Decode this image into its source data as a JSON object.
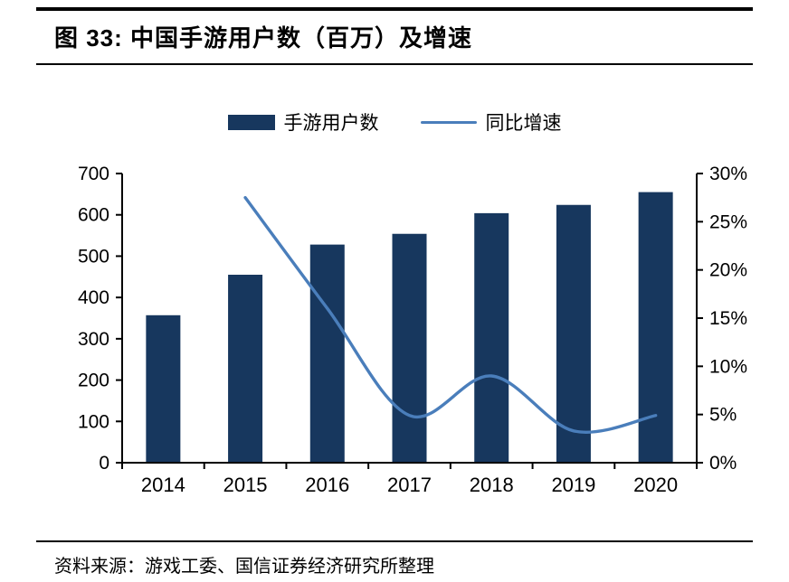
{
  "figure": {
    "title": "图 33:  中国手游用户数（百万）及增速",
    "source": "资料来源：游戏工委、国信证券经济研究所整理"
  },
  "colors": {
    "bar": "#17375E",
    "line": "#4A7EBB",
    "axis": "#000000"
  },
  "chart_data": {
    "type": "bar",
    "subtype": "bar+line combo, dual axis",
    "title": "中国手游用户数（百万）及增速",
    "categories": [
      "2014",
      "2015",
      "2016",
      "2017",
      "2018",
      "2019",
      "2020"
    ],
    "series": [
      {
        "name": "手游用户数",
        "type": "bar",
        "axis": "left",
        "color": "#17375E",
        "values": [
          357,
          455,
          528,
          554,
          604,
          624,
          655
        ]
      },
      {
        "name": "同比增速",
        "type": "line",
        "axis": "right",
        "color": "#4A7EBB",
        "values": [
          null,
          27.5,
          16.0,
          4.9,
          9.0,
          3.3,
          4.9
        ]
      }
    ],
    "left_axis": {
      "min": 0,
      "max": 700,
      "step": 100,
      "tick_labels": [
        "0",
        "100",
        "200",
        "300",
        "400",
        "500",
        "600",
        "700"
      ]
    },
    "right_axis": {
      "min": 0,
      "max": 30,
      "step": 5,
      "tick_labels": [
        "0%",
        "5%",
        "10%",
        "15%",
        "20%",
        "25%",
        "30%"
      ]
    },
    "grid": false,
    "legend_position": "top"
  }
}
